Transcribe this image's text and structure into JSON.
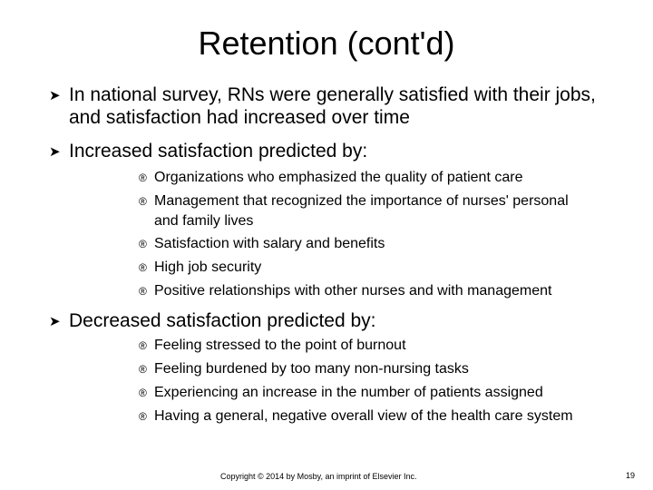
{
  "slide": {
    "title": "Retention (cont'd)",
    "bullets": [
      "In national survey, RNs were generally satisfied with their jobs, and satisfaction had increased over time",
      "Increased satisfaction predicted by:",
      "Decreased satisfaction predicted by:"
    ],
    "increased_items": [
      "Organizations who emphasized the quality of patient care",
      "Management that recognized the importance of nurses' personal and family lives",
      "Satisfaction with salary and benefits",
      "High job security",
      "Positive relationships with other nurses and with management"
    ],
    "decreased_items": [
      "Feeling stressed to the point of burnout",
      "Feeling burdened by too many non-nursing tasks",
      "Experiencing an increase in the number of patients assigned",
      "Having a general, negative overall view of the health care system"
    ],
    "footer": "Copyright © 2014 by Mosby, an imprint of Elsevier Inc.",
    "page_number": "19"
  },
  "icons": {
    "level1_marker": "arrowhead-bullet-icon",
    "level2_marker": "registered-mark-bullet-icon"
  }
}
